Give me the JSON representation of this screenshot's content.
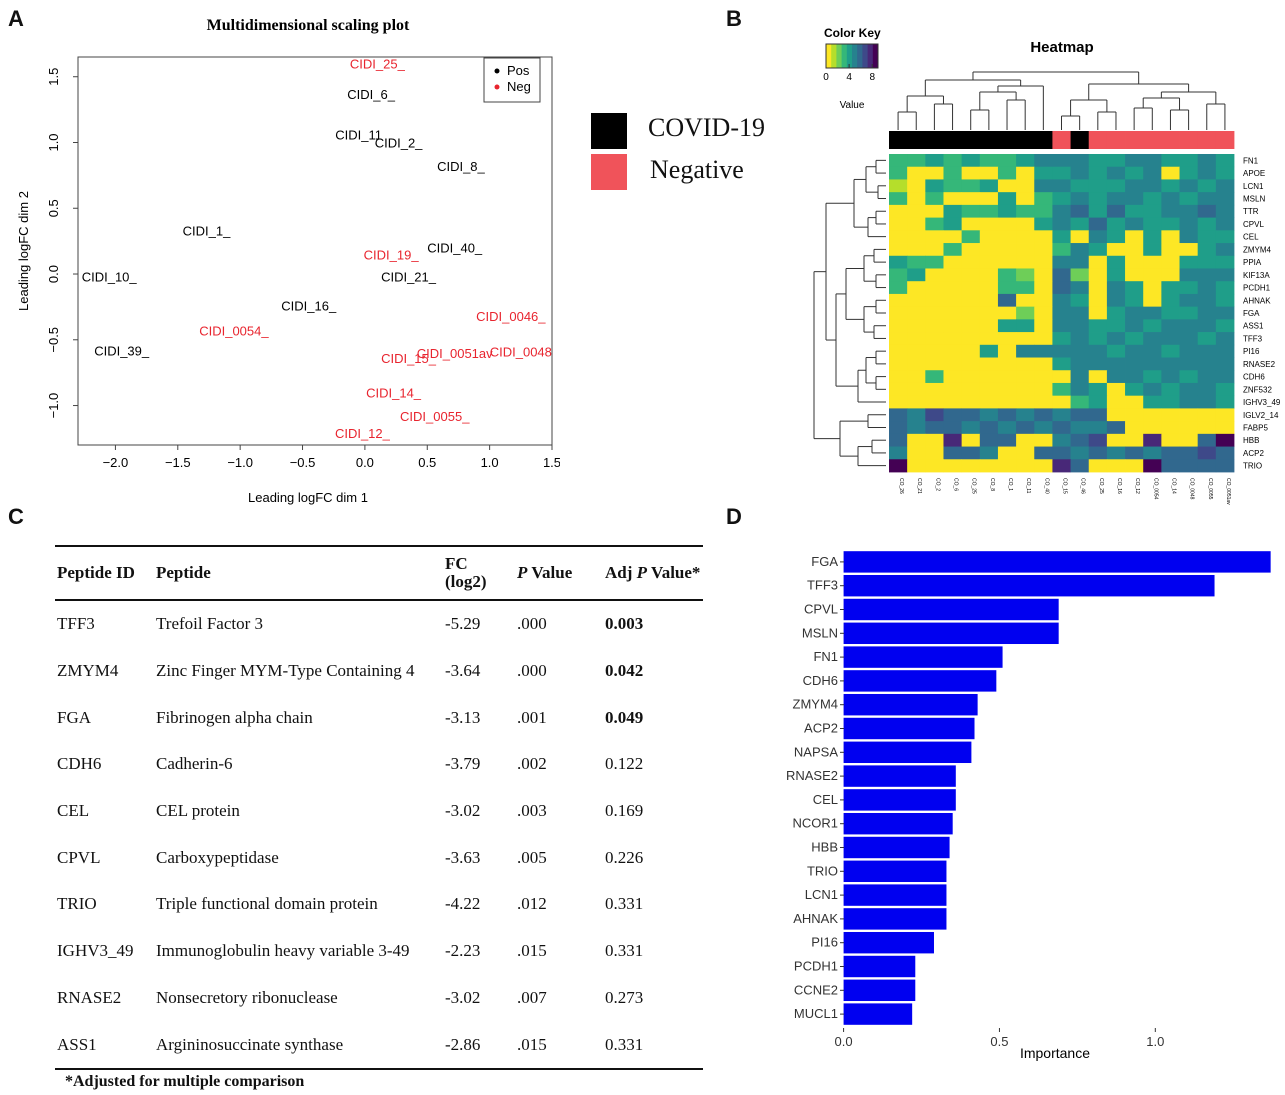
{
  "panels": {
    "a": "A",
    "b": "B",
    "c": "C",
    "d": "D"
  },
  "legend": {
    "covid_label": "COVID-19",
    "negative_label": "Negative",
    "covid_color": "#000000",
    "negative_color": "#f0535a"
  },
  "table": {
    "headers": {
      "peptide_id": "Peptide ID",
      "peptide": "Peptide",
      "fc": "FC",
      "fc_sub": "(log2)",
      "p_italic": "P",
      "p_rest": " Value",
      "adj_pre": "Adj ",
      "adj_italic": "P",
      "adj_post": " Value*"
    },
    "rows": [
      {
        "id": "TFF3",
        "peptide": "Trefoil Factor 3",
        "fc": "-5.29",
        "p": ".000",
        "adj": "0.003",
        "bold": true
      },
      {
        "id": "ZMYM4",
        "peptide": "Zinc Finger MYM-Type Containing 4",
        "fc": "-3.64",
        "p": ".000",
        "adj": "0.042",
        "bold": true
      },
      {
        "id": "FGA",
        "peptide": "Fibrinogen alpha chain",
        "fc": "-3.13",
        "p": ".001",
        "adj": "0.049",
        "bold": true
      },
      {
        "id": "CDH6",
        "peptide": "Cadherin-6",
        "fc": "-3.79",
        "p": ".002",
        "adj": "0.122",
        "bold": false
      },
      {
        "id": "CEL",
        "peptide": "CEL protein",
        "fc": "-3.02",
        "p": ".003",
        "adj": "0.169",
        "bold": false
      },
      {
        "id": "CPVL",
        "peptide": "Carboxypeptidase",
        "fc": "-3.63",
        "p": ".005",
        "adj": "0.226",
        "bold": false
      },
      {
        "id": "TRIO",
        "peptide": "Triple functional domain protein",
        "fc": "-4.22",
        "p": ".012",
        "adj": "0.331",
        "bold": false
      },
      {
        "id": "IGHV3_49",
        "peptide": "Immunoglobulin heavy variable 3-49",
        "fc": "-2.23",
        "p": ".015",
        "adj": "0.331",
        "bold": false
      },
      {
        "id": "RNASE2",
        "peptide": "Nonsecretory ribonuclease",
        "fc": "-3.02",
        "p": ".007",
        "adj": "0.273",
        "bold": false
      },
      {
        "id": "ASS1",
        "peptide": "Argininosuccinate synthase",
        "fc": "-2.86",
        "p": ".015",
        "adj": "0.331",
        "bold": false
      }
    ],
    "footnote": "*Adjusted for multiple comparison"
  },
  "chart_data": [
    {
      "type": "scatter",
      "title": "Multidimensional scaling plot",
      "xlabel": "Leading logFC dim 1",
      "ylabel": "Leading logFC dim 2",
      "xlim": [
        -2.3,
        1.5
      ],
      "ylim": [
        -1.3,
        1.65
      ],
      "xticks": [
        "-2.0",
        "-1.5",
        "-1.0",
        "-0.5",
        "0.0",
        "0.5",
        "1.0",
        "1.5"
      ],
      "yticks": [
        "-1.0",
        "-0.5",
        "0.0",
        "0.5",
        "1.0",
        "1.5"
      ],
      "legend": [
        {
          "name": "Pos",
          "color": "#000000"
        },
        {
          "name": "Neg",
          "color": "#e8242e"
        }
      ],
      "legend_position": "top-right",
      "points": [
        {
          "label": "CIDI_25_",
          "x": 0.1,
          "y": 1.6,
          "group": "Neg"
        },
        {
          "label": "CIDI_6_",
          "x": 0.05,
          "y": 1.37,
          "group": "Pos"
        },
        {
          "label": "CIDI_11",
          "x": -0.05,
          "y": 1.06,
          "group": "Pos"
        },
        {
          "label": "CIDI_2_",
          "x": 0.27,
          "y": 1.0,
          "group": "Pos"
        },
        {
          "label": "CIDI_8_",
          "x": 0.77,
          "y": 0.82,
          "group": "Pos"
        },
        {
          "label": "CIDI_1_",
          "x": -1.27,
          "y": 0.33,
          "group": "Pos"
        },
        {
          "label": "CIDI_40_",
          "x": 0.72,
          "y": 0.2,
          "group": "Pos"
        },
        {
          "label": "CIDI_19_",
          "x": 0.21,
          "y": 0.15,
          "group": "Neg"
        },
        {
          "label": "CIDI_10_",
          "x": -2.05,
          "y": -0.02,
          "group": "Pos"
        },
        {
          "label": "CIDI_21_",
          "x": 0.35,
          "y": -0.02,
          "group": "Pos"
        },
        {
          "label": "CIDI_16_",
          "x": -0.45,
          "y": -0.24,
          "group": "Pos"
        },
        {
          "label": "CIDI_0046_",
          "x": 1.17,
          "y": -0.32,
          "group": "Neg"
        },
        {
          "label": "CIDI_0054_",
          "x": -1.05,
          "y": -0.43,
          "group": "Neg"
        },
        {
          "label": "CIDI_39_",
          "x": -1.95,
          "y": -0.58,
          "group": "Pos"
        },
        {
          "label": "CIDI_15_",
          "x": 0.35,
          "y": -0.64,
          "group": "Neg"
        },
        {
          "label": "CIDI_0051av",
          "x": 0.72,
          "y": -0.6,
          "group": "Neg"
        },
        {
          "label": "CIDI_0048",
          "x": 1.25,
          "y": -0.59,
          "group": "Neg"
        },
        {
          "label": "CIDI_14_",
          "x": 0.23,
          "y": -0.9,
          "group": "Neg"
        },
        {
          "label": "CIDI_0055_",
          "x": 0.56,
          "y": -1.08,
          "group": "Neg"
        },
        {
          "label": "CIDI_12_",
          "x": -0.02,
          "y": -1.21,
          "group": "Neg"
        }
      ]
    },
    {
      "type": "heatmap",
      "title": "Heatmap",
      "color_key_title": "Color Key",
      "color_key_ticks": [
        "0",
        "4",
        "8"
      ],
      "color_key_label": "Value",
      "rows": [
        "FN1",
        "APOE",
        "LCN1",
        "MSLN",
        "TTR",
        "CPVL",
        "CEL",
        "ZMYM4",
        "PPIA",
        "KIF13A",
        "PCDH1",
        "AHNAK",
        "FGA",
        "ASS1",
        "TFF3",
        "PI16",
        "RNASE2",
        "CDH6",
        "ZNF532",
        "IGHV3_49",
        "IGLV2_14",
        "FABP5",
        "HBB",
        "ACP2",
        "TRIO"
      ],
      "columns": [
        "CO_26",
        "CO_21",
        "CO_2",
        "CO_6",
        "CO_25",
        "CO_8",
        "CO_1",
        "CO_11",
        "CO_40",
        "CO_15",
        "CO_46",
        "CO_25",
        "CO_16",
        "CO_12",
        "CO_0054",
        "CO_14",
        "CO_0048",
        "CO_0055",
        "CO_0051av"
      ],
      "column_groups": [
        "COVID-19",
        "COVID-19",
        "COVID-19",
        "COVID-19",
        "COVID-19",
        "COVID-19",
        "COVID-19",
        "COVID-19",
        "COVID-19",
        "Negative",
        "COVID-19",
        "Negative",
        "Negative",
        "Negative",
        "Negative",
        "Negative",
        "Negative",
        "Negative",
        "Negative"
      ],
      "palette": [
        "#fde725",
        "#b5de2b",
        "#6ece58",
        "#35b779",
        "#1f9e89",
        "#26828e",
        "#31688e",
        "#3e4989",
        "#482878",
        "#440154"
      ],
      "values": [
        [
          3,
          3,
          4,
          3,
          4,
          3,
          3,
          4,
          5,
          5,
          5,
          4,
          4,
          5,
          5,
          4,
          4,
          5,
          4
        ],
        [
          3,
          0,
          0,
          3,
          0,
          0,
          3,
          0,
          4,
          4,
          5,
          4,
          5,
          4,
          5,
          0,
          4,
          5,
          4
        ],
        [
          1,
          0,
          4,
          3,
          3,
          4,
          0,
          0,
          5,
          5,
          4,
          4,
          4,
          5,
          5,
          4,
          5,
          4,
          5
        ],
        [
          3,
          0,
          3,
          0,
          0,
          0,
          4,
          0,
          3,
          4,
          5,
          4,
          5,
          5,
          4,
          5,
          4,
          5,
          5
        ],
        [
          0,
          0,
          0,
          4,
          3,
          3,
          4,
          3,
          3,
          5,
          6,
          4,
          6,
          4,
          4,
          5,
          5,
          6,
          5
        ],
        [
          0,
          0,
          3,
          4,
          0,
          0,
          0,
          0,
          4,
          5,
          4,
          6,
          4,
          5,
          4,
          4,
          5,
          4,
          5
        ],
        [
          0,
          0,
          0,
          0,
          3,
          0,
          0,
          0,
          0,
          4,
          0,
          5,
          4,
          0,
          4,
          0,
          5,
          4,
          4
        ],
        [
          0,
          0,
          0,
          3,
          0,
          0,
          0,
          0,
          0,
          3,
          5,
          4,
          0,
          0,
          4,
          0,
          0,
          4,
          5
        ],
        [
          4,
          3,
          3,
          0,
          0,
          0,
          0,
          0,
          0,
          5,
          5,
          0,
          4,
          0,
          0,
          0,
          4,
          4,
          4
        ],
        [
          3,
          4,
          0,
          0,
          0,
          0,
          3,
          2,
          0,
          6,
          2,
          0,
          4,
          0,
          0,
          0,
          5,
          5,
          5
        ],
        [
          3,
          0,
          0,
          0,
          0,
          0,
          3,
          3,
          0,
          6,
          5,
          0,
          5,
          4,
          0,
          4,
          4,
          5,
          4
        ],
        [
          0,
          0,
          0,
          0,
          0,
          0,
          6,
          0,
          0,
          5,
          4,
          0,
          5,
          4,
          0,
          4,
          5,
          5,
          4
        ],
        [
          0,
          0,
          0,
          0,
          0,
          0,
          0,
          2,
          0,
          5,
          5,
          0,
          4,
          5,
          5,
          4,
          4,
          5,
          5
        ],
        [
          0,
          0,
          0,
          0,
          0,
          0,
          4,
          4,
          0,
          5,
          5,
          4,
          4,
          5,
          4,
          5,
          5,
          5,
          4
        ],
        [
          0,
          0,
          0,
          0,
          0,
          0,
          0,
          0,
          0,
          4,
          5,
          4,
          5,
          4,
          5,
          5,
          5,
          4,
          5
        ],
        [
          0,
          0,
          0,
          0,
          0,
          4,
          0,
          5,
          5,
          5,
          5,
          5,
          4,
          5,
          5,
          4,
          5,
          5,
          5
        ],
        [
          0,
          0,
          0,
          0,
          0,
          0,
          0,
          0,
          0,
          4,
          5,
          5,
          5,
          5,
          5,
          5,
          5,
          5,
          5
        ],
        [
          0,
          0,
          3,
          0,
          0,
          0,
          0,
          0,
          0,
          0,
          5,
          0,
          5,
          5,
          4,
          5,
          4,
          5,
          5
        ],
        [
          0,
          0,
          0,
          0,
          0,
          0,
          0,
          0,
          0,
          3,
          5,
          4,
          0,
          4,
          5,
          4,
          5,
          5,
          4
        ],
        [
          0,
          0,
          0,
          0,
          0,
          0,
          0,
          0,
          0,
          0,
          3,
          4,
          0,
          0,
          4,
          4,
          5,
          5,
          4
        ],
        [
          6,
          5,
          7,
          6,
          6,
          5,
          6,
          5,
          6,
          5,
          6,
          6,
          0,
          0,
          0,
          0,
          0,
          0,
          0
        ],
        [
          6,
          5,
          6,
          6,
          5,
          6,
          5,
          6,
          5,
          6,
          5,
          5,
          6,
          0,
          0,
          0,
          0,
          0,
          0
        ],
        [
          6,
          0,
          0,
          8,
          0,
          6,
          6,
          0,
          0,
          5,
          6,
          7,
          0,
          0,
          8,
          0,
          0,
          6,
          9
        ],
        [
          5,
          0,
          0,
          6,
          6,
          5,
          0,
          0,
          6,
          6,
          5,
          6,
          5,
          6,
          5,
          6,
          6,
          7,
          6
        ],
        [
          9,
          0,
          0,
          0,
          0,
          0,
          0,
          0,
          0,
          8,
          6,
          0,
          0,
          0,
          9,
          6,
          6,
          6,
          6
        ]
      ]
    },
    {
      "type": "bar",
      "orientation": "horizontal",
      "xlabel": "Importance",
      "xlim": [
        -0.05,
        1.4
      ],
      "xticks": [
        "0.0",
        "0.5",
        "1.0"
      ],
      "bar_color": "#0000f0",
      "categories": [
        "FGA",
        "TFF3",
        "CPVL",
        "MSLN",
        "FN1",
        "CDH6",
        "ZMYM4",
        "ACP2",
        "NAPSA",
        "RNASE2",
        "CEL",
        "NCOR1",
        "HBB",
        "TRIO",
        "LCN1",
        "AHNAK",
        "PI16",
        "PCDH1",
        "CCNE2",
        "MUCL1"
      ],
      "values": [
        1.37,
        1.19,
        0.69,
        0.69,
        0.51,
        0.49,
        0.43,
        0.42,
        0.41,
        0.36,
        0.36,
        0.35,
        0.34,
        0.33,
        0.33,
        0.33,
        0.29,
        0.23,
        0.23,
        0.22
      ]
    }
  ]
}
